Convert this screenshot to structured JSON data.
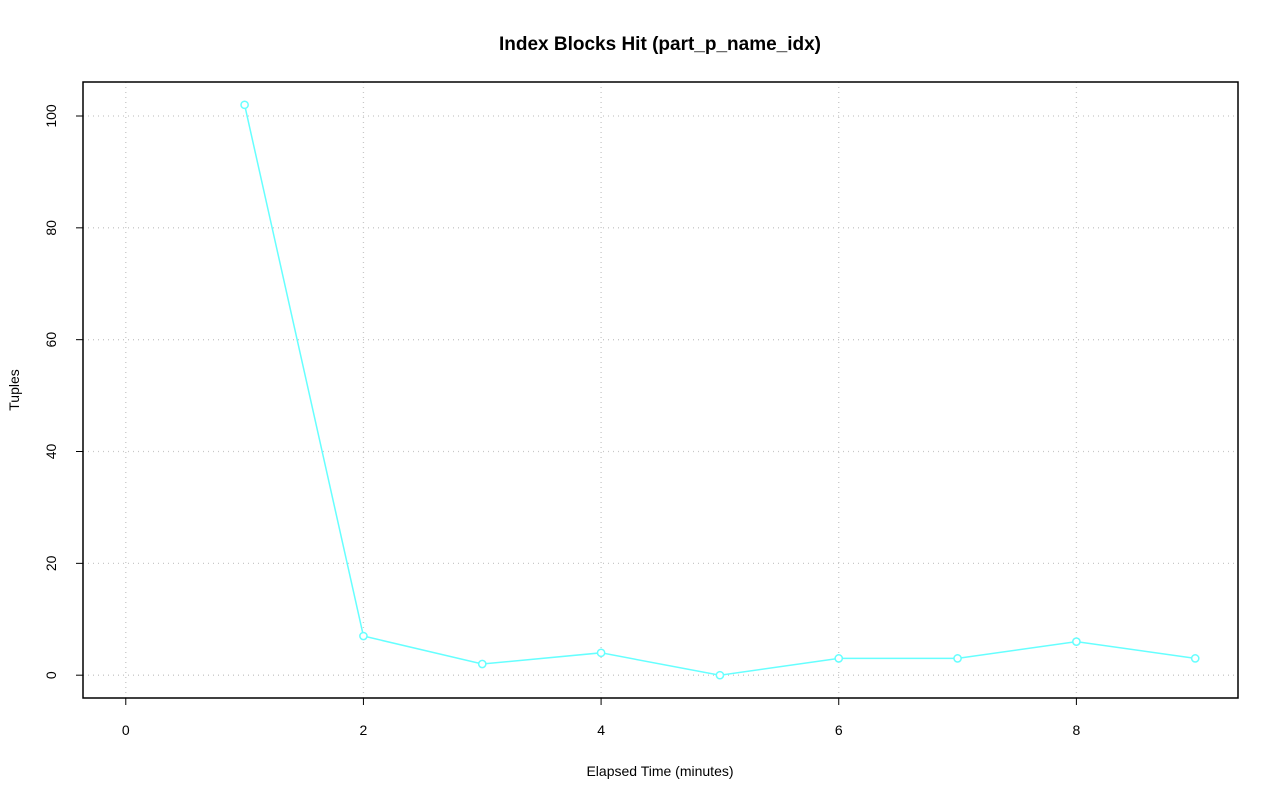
{
  "chart_data": {
    "type": "line",
    "title": "Index Blocks Hit (part_p_name_idx)",
    "xlabel": "Elapsed Time (minutes)",
    "ylabel": "Tuples",
    "x": [
      1,
      2,
      3,
      4,
      5,
      6,
      7,
      8,
      9
    ],
    "values": [
      102,
      7,
      2,
      4,
      0,
      3,
      3,
      6,
      3
    ],
    "color": "#66ffff",
    "xlim": [
      -0.36,
      9.36
    ],
    "xticks": [
      0,
      2,
      4,
      6,
      8
    ],
    "ylim": [
      -4.08,
      106.08
    ],
    "yticks": [
      0,
      20,
      40,
      60,
      80,
      100
    ],
    "grid": true
  }
}
